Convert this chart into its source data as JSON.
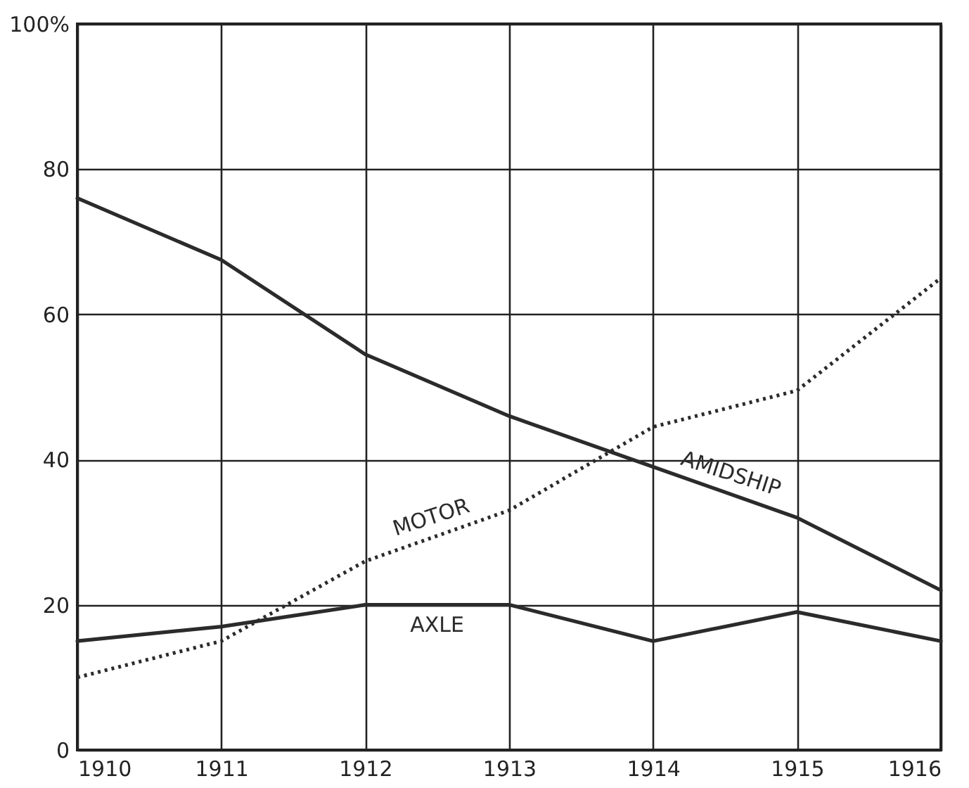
{
  "chart_data": {
    "type": "line",
    "x": [
      1910,
      1911,
      1912,
      1913,
      1914,
      1915,
      1916
    ],
    "xlim": [
      1910,
      1916
    ],
    "xticks": [
      1910,
      1911,
      1912,
      1913,
      1914,
      1915,
      1916
    ],
    "ylim": [
      0,
      100
    ],
    "yticks": [
      0,
      20,
      40,
      60,
      80,
      {
        "value": 100,
        "label": "100%"
      }
    ],
    "grid": true,
    "legend": false,
    "marker": "none",
    "series": [
      {
        "name": "AMIDSHIP",
        "color": "#2b2b2b",
        "line_style": "solid",
        "values": [
          76,
          67.5,
          54.5,
          46,
          39,
          32,
          22
        ]
      },
      {
        "name": "MOTOR",
        "color": "#2b2b2b",
        "line_style": "dotted",
        "values": [
          10,
          15,
          26,
          33,
          44.5,
          49.5,
          65
        ]
      },
      {
        "name": "AXLE",
        "color": "#2b2b2b",
        "line_style": "solid",
        "values": [
          15,
          17,
          20,
          20,
          15,
          19,
          15
        ]
      }
    ]
  }
}
